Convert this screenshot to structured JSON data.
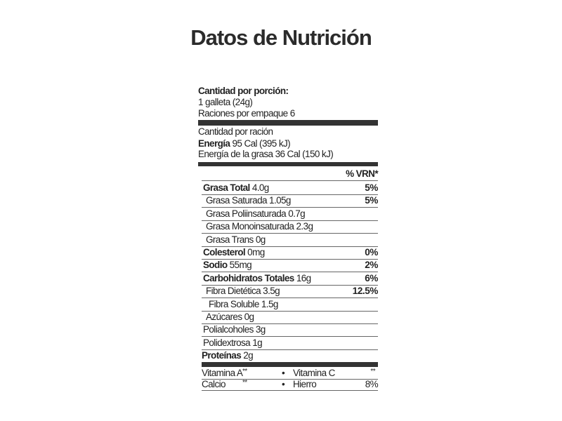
{
  "title": "Datos de Nutrición",
  "serving": {
    "heading": "Cantidad por porción:",
    "size": "1 galleta (24g)",
    "per_pack": "Raciones por empaque 6"
  },
  "energy": {
    "heading": "Cantidad por ración",
    "label": "Energía",
    "value": " 95 Cal (395 kJ)",
    "fat_energy": "Energía de la grasa 36 Cal (150 kJ)"
  },
  "vrn_header": "% VRN*",
  "nutrients": [
    {
      "label": "Grasa Total",
      "value": " 4.0g",
      "pct": "5%",
      "bold": true
    },
    {
      "label": "",
      "value": "Grasa Saturada 1.05g",
      "pct": "5%"
    },
    {
      "label": "",
      "value": "Grasa Poliinsaturada 0.7g",
      "pct": ""
    },
    {
      "label": "",
      "value": "Grasa Monoinsaturada 2.3g",
      "pct": ""
    },
    {
      "label": "",
      "value": "Grasa Trans 0g",
      "pct": ""
    },
    {
      "label": "Colesterol",
      "value": " 0mg",
      "pct": "0%",
      "bold": true
    },
    {
      "label": "Sodio",
      "value": " 55mg",
      "pct": "2%",
      "bold": true
    },
    {
      "label": "Carbohidratos Totales",
      "value": " 16g",
      "pct": "6%",
      "bold": true
    },
    {
      "label": "",
      "value": "Fibra Dietética  3.5g",
      "pct": "12.5%"
    },
    {
      "label": "",
      "value": "Fibra Soluble 1.5g",
      "pct": ""
    },
    {
      "label": "",
      "value": "Azúcares 0g",
      "pct": ""
    },
    {
      "label": "",
      "value": "Polialcoholes 3g",
      "pct": ""
    },
    {
      "label": "",
      "value": "Polidextrosa 1g",
      "pct": ""
    },
    {
      "label": "Proteínas",
      "value": " 2g",
      "pct": "",
      "bold": true
    }
  ],
  "vitamins": [
    {
      "left_name": "Vitamina A",
      "left_val": "**",
      "bullet": "•",
      "right_name": "Vitamina C",
      "right_val": "**"
    },
    {
      "left_name": "Calcio",
      "left_val": "**",
      "bullet": "•",
      "right_name": "Hierro",
      "right_val": "8%"
    }
  ]
}
